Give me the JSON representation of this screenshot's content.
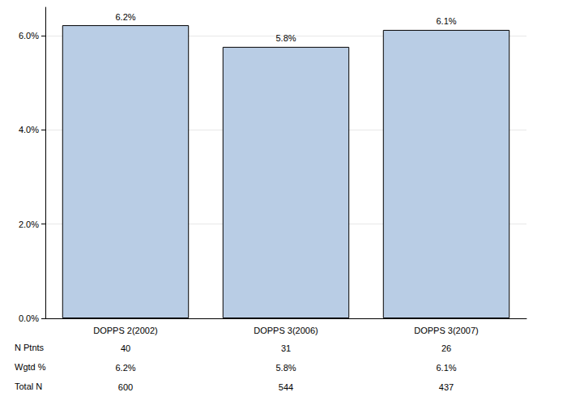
{
  "chart_data": {
    "type": "bar",
    "categories": [
      "DOPPS 2(2002)",
      "DOPPS 3(2006)",
      "DOPPS 3(2007)"
    ],
    "values": [
      6.22,
      5.76,
      6.12
    ],
    "value_labels": [
      "6.2%",
      "5.8%",
      "6.1%"
    ],
    "data_labels": true,
    "color": "#b9cde5",
    "ylim": [
      0,
      6.6
    ],
    "yticks": [
      {
        "value": 0,
        "label": "0.0%"
      },
      {
        "value": 2,
        "label": "2.0%"
      },
      {
        "value": 4,
        "label": "4.0%"
      },
      {
        "value": 6,
        "label": "6.0%"
      }
    ],
    "grid": true,
    "table": {
      "rows": [
        {
          "label": "N Ptnts",
          "values": [
            "40",
            "31",
            "26"
          ]
        },
        {
          "label": "Wgtd %",
          "values": [
            "6.2%",
            "5.8%",
            "6.1%"
          ]
        },
        {
          "label": "Total N",
          "values": [
            "600",
            "544",
            "437"
          ]
        }
      ]
    }
  }
}
